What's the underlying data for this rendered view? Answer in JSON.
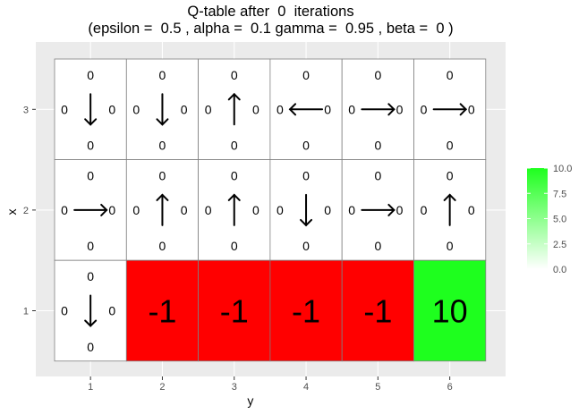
{
  "chart_data": {
    "type": "heatmap",
    "title_line1": "Q-table after  0  iterations",
    "title_line2": "(epsilon =  0.5 , alpha =  0.1 gamma =  0.95 , beta =  0 )",
    "xlabel": "y",
    "ylabel": "x",
    "x_ticks": [
      "1",
      "2",
      "3",
      "4",
      "5",
      "6"
    ],
    "y_ticks": [
      "1",
      "2",
      "3"
    ],
    "grid": true,
    "legend": {
      "position": "right",
      "min": 0,
      "max": 10,
      "ticks": [
        "0.0",
        "2.5",
        "5.0",
        "7.5",
        "10.0"
      ],
      "low_color": "#ffffff",
      "high_color": "#1eff1e"
    },
    "reward_color_negative": "#ff0000",
    "reward_color_positive": "#1eff1e",
    "cells": [
      {
        "x": 3,
        "y": 1,
        "q": {
          "up": "0",
          "down": "0",
          "left": "0",
          "right": "0"
        },
        "arrow": "down"
      },
      {
        "x": 3,
        "y": 2,
        "q": {
          "up": "0",
          "down": "0",
          "left": "0",
          "right": "0"
        },
        "arrow": "down"
      },
      {
        "x": 3,
        "y": 3,
        "q": {
          "up": "0",
          "down": "0",
          "left": "0",
          "right": "0"
        },
        "arrow": "up"
      },
      {
        "x": 3,
        "y": 4,
        "q": {
          "up": "0",
          "down": "0",
          "left": "0",
          "right": "0"
        },
        "arrow": "left"
      },
      {
        "x": 3,
        "y": 5,
        "q": {
          "up": "0",
          "down": "0",
          "left": "0",
          "right": "0"
        },
        "arrow": "right"
      },
      {
        "x": 3,
        "y": 6,
        "q": {
          "up": "0",
          "down": "0",
          "left": "0",
          "right": "0"
        },
        "arrow": "right"
      },
      {
        "x": 2,
        "y": 1,
        "q": {
          "up": "0",
          "down": "0",
          "left": "0",
          "right": "0"
        },
        "arrow": "right"
      },
      {
        "x": 2,
        "y": 2,
        "q": {
          "up": "0",
          "down": "0",
          "left": "0",
          "right": "0"
        },
        "arrow": "up"
      },
      {
        "x": 2,
        "y": 3,
        "q": {
          "up": "0",
          "down": "0",
          "left": "0",
          "right": "0"
        },
        "arrow": "up"
      },
      {
        "x": 2,
        "y": 4,
        "q": {
          "up": "0",
          "down": "0",
          "left": "0",
          "right": "0"
        },
        "arrow": "down"
      },
      {
        "x": 2,
        "y": 5,
        "q": {
          "up": "0",
          "down": "0",
          "left": "0",
          "right": "0"
        },
        "arrow": "right"
      },
      {
        "x": 2,
        "y": 6,
        "q": {
          "up": "0",
          "down": "0",
          "left": "0",
          "right": "0"
        },
        "arrow": "up"
      },
      {
        "x": 1,
        "y": 1,
        "q": {
          "up": "0",
          "down": "0",
          "left": "0",
          "right": "0"
        },
        "arrow": "down"
      },
      {
        "x": 1,
        "y": 2,
        "reward": "-1",
        "reward_value": -1
      },
      {
        "x": 1,
        "y": 3,
        "reward": "-1",
        "reward_value": -1
      },
      {
        "x": 1,
        "y": 4,
        "reward": "-1",
        "reward_value": -1
      },
      {
        "x": 1,
        "y": 5,
        "reward": "-1",
        "reward_value": -1
      },
      {
        "x": 1,
        "y": 6,
        "reward": "10",
        "reward_value": 10
      }
    ]
  }
}
